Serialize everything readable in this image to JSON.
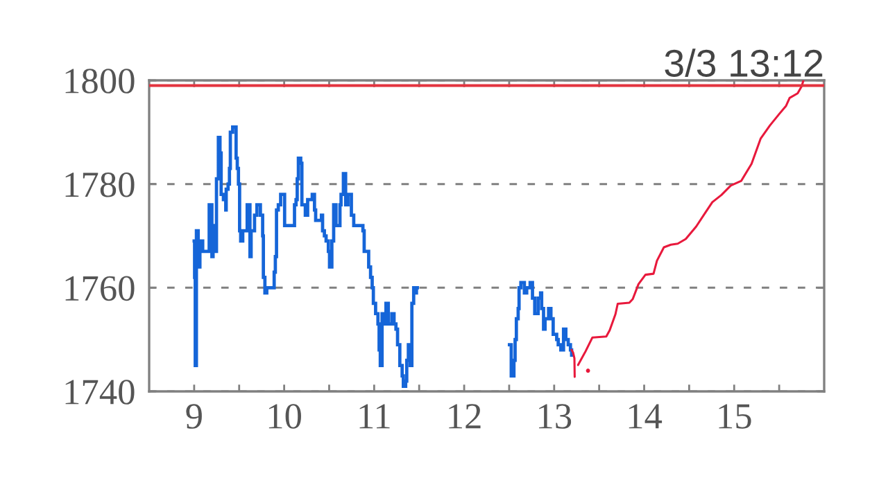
{
  "chart_data": {
    "type": "line",
    "title": "3/3 13:12",
    "xlim": [
      8.5,
      16
    ],
    "xticks": [
      9,
      {
        "value": 9.5,
        "label": null
      },
      10,
      {
        "value": 10.5,
        "label": null
      },
      11,
      {
        "value": 11.5,
        "label": null
      },
      12,
      {
        "value": 12.5,
        "label": null
      },
      13,
      {
        "value": 13.5,
        "label": null
      },
      14,
      {
        "value": 14.5,
        "label": null
      },
      15,
      {
        "value": 15.5,
        "label": null
      }
    ],
    "ylim": [
      1740,
      1800
    ],
    "yticks": [
      1740,
      1760,
      1780,
      1800
    ],
    "grid": "y",
    "ref_lines": [
      {
        "axis": "y",
        "value": 1799,
        "color": "#e3343f"
      }
    ],
    "series": [
      {
        "type": "step",
        "color": "#1565d8",
        "x": [
          9.0,
          9.005,
          9.012,
          9.025,
          9.045,
          9.064,
          9.095,
          9.167,
          9.197,
          9.21,
          9.223,
          9.248,
          9.269,
          9.287,
          9.3,
          9.325,
          9.351,
          9.356,
          9.377,
          9.392,
          9.402,
          9.428,
          9.466,
          9.479,
          9.492,
          9.505,
          9.517,
          9.54,
          9.589,
          9.62,
          9.633,
          9.671,
          9.697,
          9.736,
          9.761,
          9.769,
          9.786,
          9.807,
          9.876,
          9.889,
          9.902,
          9.915,
          9.935,
          9.961,
          10.005,
          10.115,
          10.132,
          10.145,
          10.158,
          10.184,
          10.197,
          10.235,
          10.261,
          10.312,
          10.337,
          10.35,
          10.414,
          10.427,
          10.447,
          10.466,
          10.491,
          10.504,
          10.53,
          10.55,
          10.576,
          10.62,
          10.632,
          10.658,
          10.683,
          10.709,
          10.747,
          10.773,
          10.875,
          10.889,
          10.939,
          10.96,
          10.978,
          10.991,
          11.016,
          11.042,
          11.055,
          11.068,
          11.088,
          11.106,
          11.131,
          11.157,
          11.196,
          11.221,
          11.242,
          11.26,
          11.285,
          11.311,
          11.324,
          11.35,
          11.362,
          11.38,
          11.4,
          11.419,
          11.439,
          11.465,
          11.47,
          11.48,
          12.503,
          12.523,
          12.553,
          12.566,
          12.58,
          12.6,
          12.61,
          12.63,
          12.669,
          12.695,
          12.733,
          12.759,
          12.784,
          12.822,
          12.849,
          12.861,
          12.882,
          12.899,
          12.938,
          12.964,
          12.989,
          13.028,
          13.045,
          13.074,
          13.104,
          13.13,
          13.156,
          13.181,
          13.194
        ],
        "values": [
          1769,
          1762,
          1745,
          1771,
          1764,
          1769,
          1767,
          1776,
          1766,
          1772,
          1767,
          1781,
          1789,
          1786,
          1778,
          1777,
          1775,
          1779,
          1780,
          1783,
          1790,
          1791,
          1785,
          1783,
          1780,
          1771,
          1769,
          1771,
          1776,
          1766,
          1771,
          1774,
          1776,
          1774,
          1770,
          1762,
          1759,
          1760,
          1760,
          1763,
          1766,
          1775,
          1776,
          1778,
          1772,
          1776,
          1777,
          1781,
          1785,
          1784,
          1776,
          1774,
          1777,
          1778,
          1775,
          1773,
          1774,
          1771,
          1770,
          1769,
          1767,
          1764,
          1769,
          1776,
          1772,
          1776,
          1778,
          1782,
          1776,
          1778,
          1774,
          1772,
          1771,
          1767,
          1764,
          1762,
          1760,
          1757,
          1755,
          1753,
          1748,
          1745,
          1755,
          1753,
          1757,
          1753,
          1755,
          1753,
          1752,
          1749,
          1745,
          1743,
          1741,
          1742,
          1746,
          1749,
          1745,
          1757,
          1760,
          1759,
          1760,
          null,
          1749,
          1743,
          1746,
          1750,
          1754,
          1756,
          1760,
          1761,
          1759,
          1760,
          1761,
          1758,
          1755,
          1758,
          1759,
          1756,
          1752,
          1754,
          1756,
          1754,
          1751,
          1750,
          1749,
          1748,
          1752,
          1750,
          1749,
          1748,
          1747
        ]
      },
      {
        "color": "#e8193c",
        "x": [
          13.194,
          13.21,
          13.225,
          13.228,
          13.25,
          13.266,
          13.348,
          13.425,
          13.579,
          13.617,
          13.681,
          13.706,
          13.835,
          13.873,
          13.937,
          14.014,
          14.104,
          14.142,
          14.219,
          14.296,
          14.373,
          14.462,
          14.578,
          14.68,
          14.757,
          14.859,
          14.962,
          15.078,
          15.193,
          15.295,
          15.397,
          15.5,
          15.577,
          15.616,
          15.705,
          15.751,
          15.769
        ],
        "values": [
          1748,
          1747.5,
          1746.4,
          1742.8,
          null,
          1745.1,
          1747.7,
          1750.4,
          1750.6,
          1751.8,
          1754.9,
          1756.9,
          1757.1,
          1757.8,
          1760.7,
          1762.5,
          1762.7,
          1765.2,
          1767.8,
          1768.3,
          1768.5,
          1769.4,
          1771.8,
          1774.5,
          1776.5,
          1777.9,
          1779.7,
          1780.6,
          1783.9,
          1788.8,
          1791.3,
          1793.5,
          1795.1,
          1796.6,
          1797.5,
          1798.9,
          1800
        ]
      },
      {
        "type": "scatter",
        "color": "#e8193c",
        "marker": "circle",
        "x": [
          13.376
        ],
        "values": [
          1744
        ]
      }
    ]
  }
}
